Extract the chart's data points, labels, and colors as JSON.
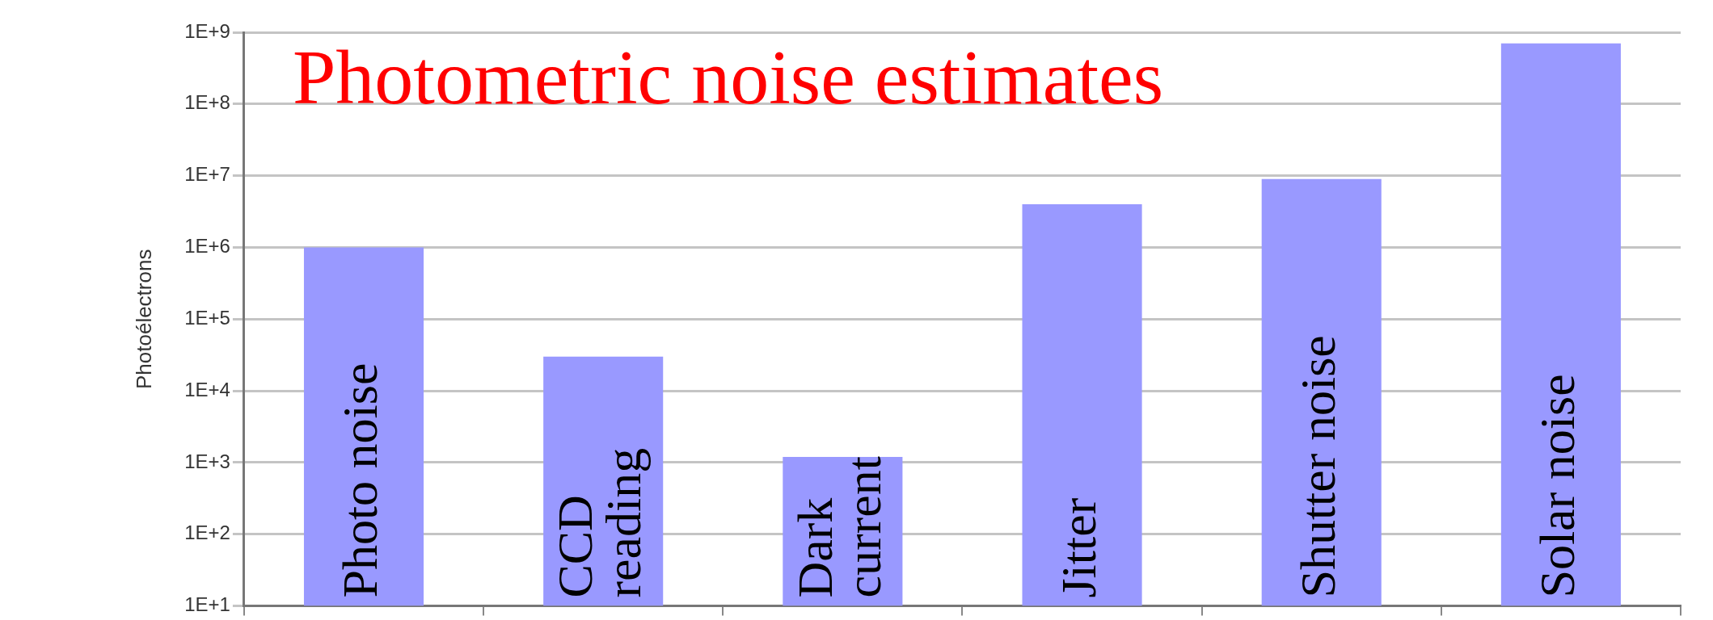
{
  "chart_data": {
    "type": "bar",
    "title": "Photometric noise estimates",
    "ylabel": "Photoélectrons",
    "categories": [
      "Photo noise",
      "CCD reading",
      "Dark current",
      "Jitter",
      "Shutter noise",
      "Solar noise"
    ],
    "values": [
      1000000,
      30000,
      1200,
      4000000,
      9000000,
      700000000
    ],
    "color": "#9999ff",
    "ylim": [
      10,
      1000000000
    ],
    "yticks": [
      {
        "value": 10,
        "label": "1E+1"
      },
      {
        "value": 100,
        "label": "1E+2"
      },
      {
        "value": 1000,
        "label": "1E+3"
      },
      {
        "value": 10000,
        "label": "1E+4"
      },
      {
        "value": 100000,
        "label": "1E+5"
      },
      {
        "value": 1000000,
        "label": "1E+6"
      },
      {
        "value": 10000000,
        "label": "1E+7"
      },
      {
        "value": 100000000,
        "label": "1E+8"
      },
      {
        "value": 1000000000,
        "label": "1E+9"
      }
    ],
    "log": true,
    "grid": "y"
  }
}
